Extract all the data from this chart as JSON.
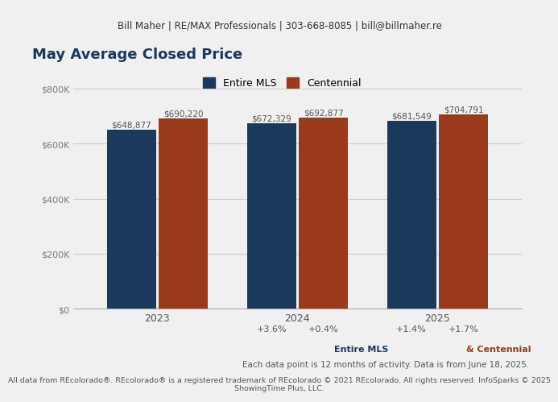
{
  "header_text": "Bill Maher | RE/MAX Professionals | 303-668-8085 | bill@billmaher.re",
  "title": "May Average Closed Price",
  "years": [
    "2023",
    "2024",
    "2025"
  ],
  "mls_values": [
    648877,
    672329,
    681549
  ],
  "centennial_values": [
    690220,
    692877,
    704791
  ],
  "mls_labels": [
    "$648,877",
    "$672,329",
    "$681,549"
  ],
  "centennial_labels": [
    "$690,220",
    "$692,877",
    "$704,791"
  ],
  "mls_color": "#1a3a5c",
  "centennial_color": "#9b3a1a",
  "pct_changes_mls": [
    "+3.6%",
    "+1.4%"
  ],
  "pct_changes_centennial": [
    "+0.4%",
    "+1.7%"
  ],
  "ylim": [
    0,
    800000
  ],
  "yticks": [
    0,
    200000,
    400000,
    600000,
    800000
  ],
  "ytick_labels": [
    "$0",
    "$200K",
    "$400K",
    "$600K",
    "$800K"
  ],
  "footer2": "Each data point is 12 months of activity. Data is from June 18, 2025.",
  "footer3": "All data from REcolorado®. REcolorado® is a registered trademark of REcolorado © 2021 REcolorado. All rights reserved. InfoSparks © 2025",
  "footer4": "ShowingTime Plus, LLC.",
  "bg_color": "#f0f0f0",
  "header_bg_color": "#e8e8e8",
  "grid_color": "#cccccc",
  "bar_width": 0.35
}
